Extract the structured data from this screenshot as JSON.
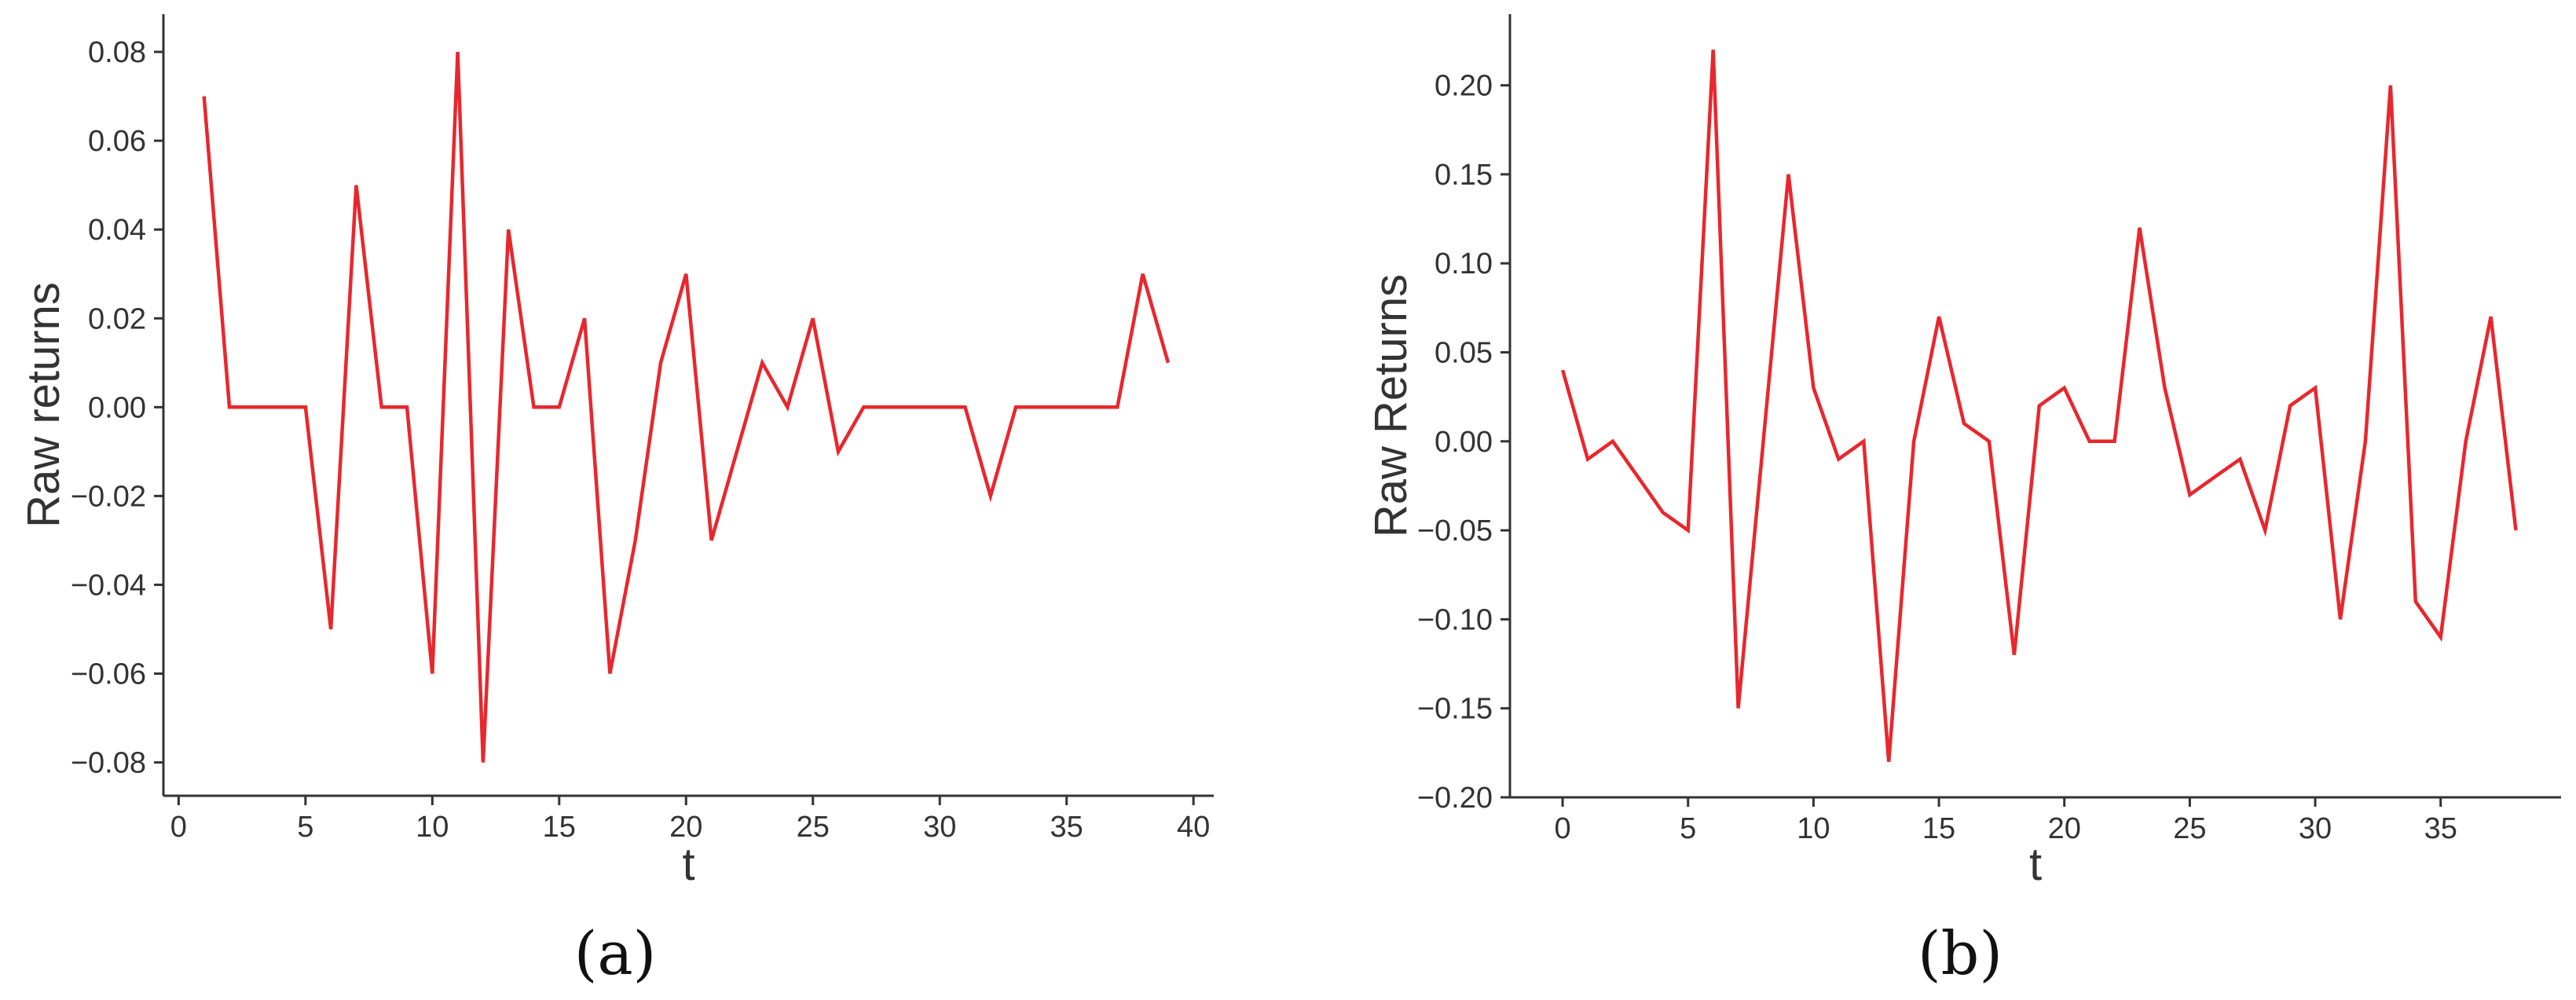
{
  "colors": {
    "series": "#e8272d",
    "axis": "#333333",
    "text": "#333333"
  },
  "chart_data": [
    {
      "type": "line",
      "caption": "(a)",
      "xlabel": "t",
      "ylabel": "Raw returns",
      "xlim": [
        -0.6,
        40.8
      ],
      "ylim": [
        -0.0875,
        0.0885
      ],
      "xticks": [
        0,
        5,
        10,
        15,
        20,
        25,
        30,
        35,
        40
      ],
      "yticks": [
        -0.08,
        -0.06,
        -0.04,
        -0.02,
        0.0,
        0.02,
        0.04,
        0.06,
        0.08
      ],
      "xtick_labels": [
        "0",
        "5",
        "10",
        "15",
        "20",
        "25",
        "30",
        "35",
        "40"
      ],
      "ytick_labels": [
        "−0.08",
        "−0.06",
        "−0.04",
        "−0.02",
        "0.00",
        "0.02",
        "0.04",
        "0.06",
        "0.08"
      ],
      "grid": false,
      "series": [
        {
          "color": "#e8272d",
          "x": [
            1,
            2,
            3,
            4,
            5,
            6,
            7,
            8,
            9,
            10,
            11,
            12,
            13,
            14,
            15,
            16,
            17,
            18,
            19,
            20,
            21,
            22,
            23,
            24,
            25,
            26,
            27,
            28,
            29,
            30,
            31,
            32,
            33,
            34,
            35,
            36,
            37,
            38,
            39
          ],
          "values": [
            0.07,
            0.0,
            0.0,
            0.0,
            0.0,
            -0.05,
            0.05,
            0.0,
            0.0,
            -0.06,
            0.08,
            -0.08,
            0.04,
            0.0,
            0.0,
            0.02,
            -0.06,
            -0.03,
            0.01,
            0.03,
            -0.03,
            -0.01,
            0.01,
            0.0,
            0.02,
            -0.01,
            0.0,
            0.0,
            0.0,
            0.0,
            0.0,
            -0.02,
            0.0,
            0.0,
            0.0,
            0.0,
            0.0,
            0.03,
            0.01
          ]
        }
      ]
    },
    {
      "type": "line",
      "caption": "(b)",
      "xlabel": "t",
      "ylabel": "Raw Returns",
      "xlim": [
        -2.1,
        39.8
      ],
      "ylim": [
        -0.2,
        0.24
      ],
      "xticks": [
        0,
        5,
        10,
        15,
        20,
        25,
        30,
        35
      ],
      "yticks": [
        -0.2,
        -0.15,
        -0.1,
        -0.05,
        0.0,
        0.05,
        0.1,
        0.15,
        0.2
      ],
      "xtick_labels": [
        "0",
        "5",
        "10",
        "15",
        "20",
        "25",
        "30",
        "35"
      ],
      "ytick_labels": [
        "−0.20",
        "−0.15",
        "−0.10",
        "−0.05",
        "0.00",
        "0.05",
        "0.10",
        "0.15",
        "0.20"
      ],
      "grid": false,
      "series": [
        {
          "color": "#e8272d",
          "x": [
            0,
            1,
            2,
            3,
            4,
            5,
            6,
            7,
            8,
            9,
            10,
            11,
            12,
            13,
            14,
            15,
            16,
            17,
            18,
            19,
            20,
            21,
            22,
            23,
            24,
            25,
            26,
            27,
            28,
            29,
            30,
            31,
            32,
            33,
            34,
            35,
            36,
            37,
            38
          ],
          "values": [
            0.04,
            -0.01,
            0.0,
            -0.02,
            -0.04,
            -0.05,
            0.22,
            -0.15,
            0.0,
            0.15,
            0.03,
            -0.01,
            0.0,
            -0.18,
            0.0,
            0.07,
            0.01,
            0.0,
            -0.12,
            0.02,
            0.03,
            0.0,
            0.0,
            0.12,
            0.03,
            -0.03,
            -0.02,
            -0.01,
            -0.05,
            0.02,
            0.03,
            -0.1,
            0.0,
            0.2,
            -0.09,
            -0.11,
            0.0,
            0.07,
            -0.05
          ]
        }
      ]
    }
  ]
}
